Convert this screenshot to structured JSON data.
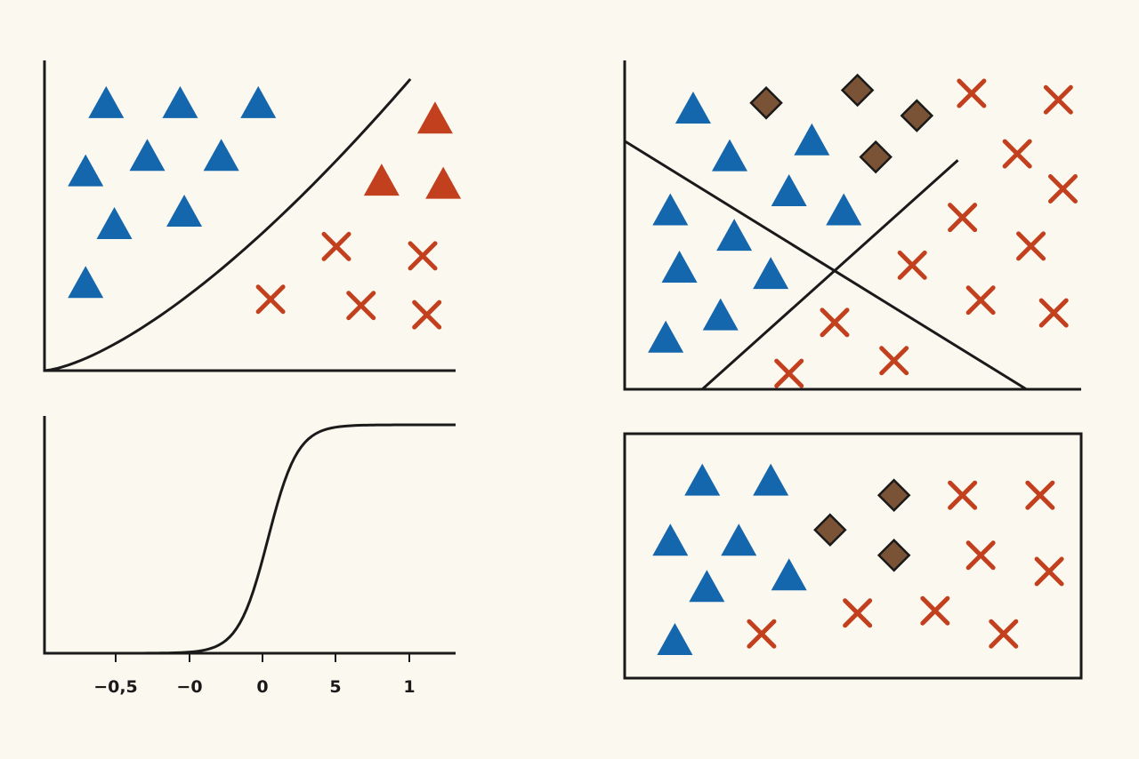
{
  "colors": {
    "background": "#fbf8ef",
    "triangle_blue": "#1466ad",
    "triangle_red": "#c2401e",
    "cross_red": "#c2401e",
    "diamond_brown": "#7a5235",
    "axis": "#1a1a1a"
  },
  "chart_data": [
    {
      "panel": "top-left",
      "type": "scatter",
      "xlim": [
        0,
        10
      ],
      "ylim": [
        0,
        10
      ],
      "series": [
        {
          "marker": "triangle",
          "color": "blue",
          "points": [
            [
              1.5,
              8.6
            ],
            [
              3.3,
              8.6
            ],
            [
              5.2,
              8.6
            ],
            [
              2.5,
              6.9
            ],
            [
              4.3,
              6.9
            ],
            [
              1,
              6.4
            ],
            [
              3.4,
              5.1
            ],
            [
              1.7,
              4.7
            ],
            [
              1,
              2.8
            ]
          ]
        },
        {
          "marker": "triangle",
          "color": "red",
          "points": [
            [
              9.5,
              8.1
            ],
            [
              8.2,
              6.1
            ],
            [
              9.7,
              6
            ]
          ]
        },
        {
          "marker": "cross",
          "color": "red",
          "points": [
            [
              7.1,
              4
            ],
            [
              9.2,
              3.7
            ],
            [
              5.5,
              2.3
            ],
            [
              7.7,
              2.1
            ],
            [
              9.3,
              1.8
            ]
          ]
        }
      ],
      "curves": [
        {
          "kind": "power",
          "x0": 0,
          "x1": 8.9,
          "y0": 0,
          "y1": 9.4,
          "exponent": 1.45
        }
      ]
    },
    {
      "panel": "bottom-left",
      "type": "line",
      "xlim": [
        -1,
        1.3
      ],
      "ylim": [
        0,
        1
      ],
      "xticks": [
        "−0,5",
        "−0",
        "0",
        "5",
        "1"
      ],
      "curves": [
        {
          "kind": "sigmoid",
          "center": 0.25,
          "steepness": 12
        }
      ]
    },
    {
      "panel": "top-right",
      "type": "scatter",
      "xlim": [
        0,
        10
      ],
      "ylim": [
        0,
        10
      ],
      "series": [
        {
          "marker": "triangle",
          "color": "blue",
          "points": [
            [
              1.5,
              8.8
            ],
            [
              4.1,
              7.8
            ],
            [
              2.3,
              7.3
            ],
            [
              3.6,
              6.2
            ],
            [
              1,
              5.6
            ],
            [
              4.8,
              5.6
            ],
            [
              2.4,
              4.8
            ],
            [
              1.2,
              3.8
            ],
            [
              3.2,
              3.6
            ],
            [
              2.1,
              2.3
            ],
            [
              0.9,
              1.6
            ]
          ]
        },
        {
          "marker": "diamond",
          "color": "brown",
          "points": [
            [
              3.1,
              9
            ],
            [
              5.1,
              9.4
            ],
            [
              6.4,
              8.6
            ],
            [
              5.5,
              7.3
            ]
          ]
        },
        {
          "marker": "cross",
          "color": "red",
          "points": [
            [
              7.6,
              9.3
            ],
            [
              9.5,
              9.1
            ],
            [
              8.6,
              7.4
            ],
            [
              9.6,
              6.3
            ],
            [
              7.4,
              5.4
            ],
            [
              8.9,
              4.5
            ],
            [
              6.3,
              3.9
            ],
            [
              7.8,
              2.8
            ],
            [
              9.4,
              2.4
            ],
            [
              4.6,
              2.1
            ],
            [
              5.9,
              0.9
            ],
            [
              3.6,
              0.5
            ]
          ]
        }
      ],
      "lines": [
        {
          "from": [
            0,
            7.8
          ],
          "to": [
            8.8,
            0
          ]
        },
        {
          "from": [
            1.7,
            0
          ],
          "to": [
            7.3,
            7.2
          ]
        }
      ]
    },
    {
      "panel": "bottom-right",
      "type": "scatter",
      "xlim": [
        0,
        10
      ],
      "ylim": [
        0,
        10
      ],
      "series": [
        {
          "marker": "triangle",
          "color": "blue",
          "points": [
            [
              1.7,
              8.4
            ],
            [
              3.2,
              8.4
            ],
            [
              1,
              5.8
            ],
            [
              2.5,
              5.8
            ],
            [
              1.8,
              3.8
            ],
            [
              3.6,
              4.3
            ],
            [
              1.1,
              1.5
            ]
          ]
        },
        {
          "marker": "diamond",
          "color": "brown",
          "points": [
            [
              5.9,
              7.8
            ],
            [
              4.5,
              6.3
            ],
            [
              5.9,
              5.2
            ]
          ]
        },
        {
          "marker": "cross",
          "color": "red",
          "points": [
            [
              7.4,
              7.8
            ],
            [
              9.1,
              7.8
            ],
            [
              7.8,
              5.2
            ],
            [
              9.3,
              4.5
            ],
            [
              5.1,
              2.7
            ],
            [
              6.8,
              2.8
            ],
            [
              8.3,
              1.8
            ],
            [
              3,
              1.8
            ]
          ]
        }
      ]
    }
  ]
}
